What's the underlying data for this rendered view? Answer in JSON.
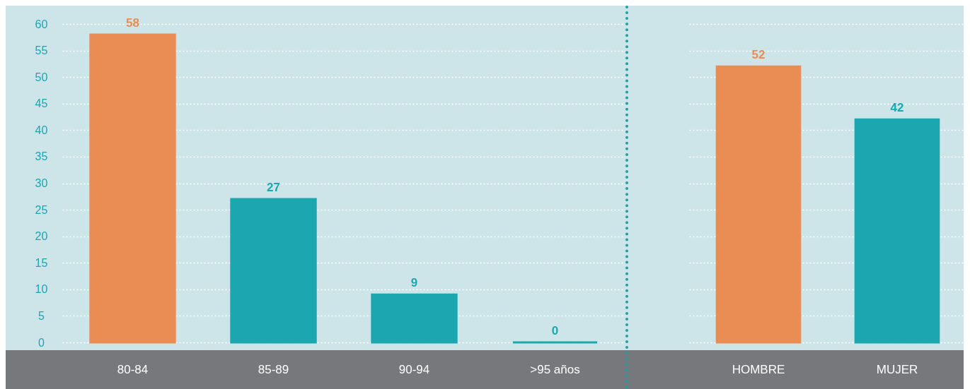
{
  "chart_data": [
    {
      "type": "bar",
      "categories": [
        "80-84",
        "85-89",
        "90-94",
        ">95 años"
      ],
      "values": [
        58,
        27,
        9,
        0
      ],
      "colors": [
        "#e98d55",
        "#1ca6b0",
        "#1ca6b0",
        "#1ca6b0"
      ],
      "ylim": [
        0,
        60
      ],
      "yticks": [
        0,
        5,
        10,
        15,
        20,
        25,
        30,
        35,
        40,
        45,
        50,
        55,
        60
      ],
      "grid": "y",
      "data_labels": true
    },
    {
      "type": "bar",
      "categories": [
        "HOMBRE",
        "MUJER"
      ],
      "values": [
        52,
        42
      ],
      "colors": [
        "#e98d55",
        "#1ca6b0"
      ],
      "ylim": [
        0,
        60
      ],
      "yticks": [
        0,
        5,
        10,
        15,
        20,
        25,
        30,
        35,
        40,
        45,
        50,
        55,
        60
      ],
      "grid": "y",
      "data_labels": true,
      "tick_labels": "x"
    }
  ]
}
